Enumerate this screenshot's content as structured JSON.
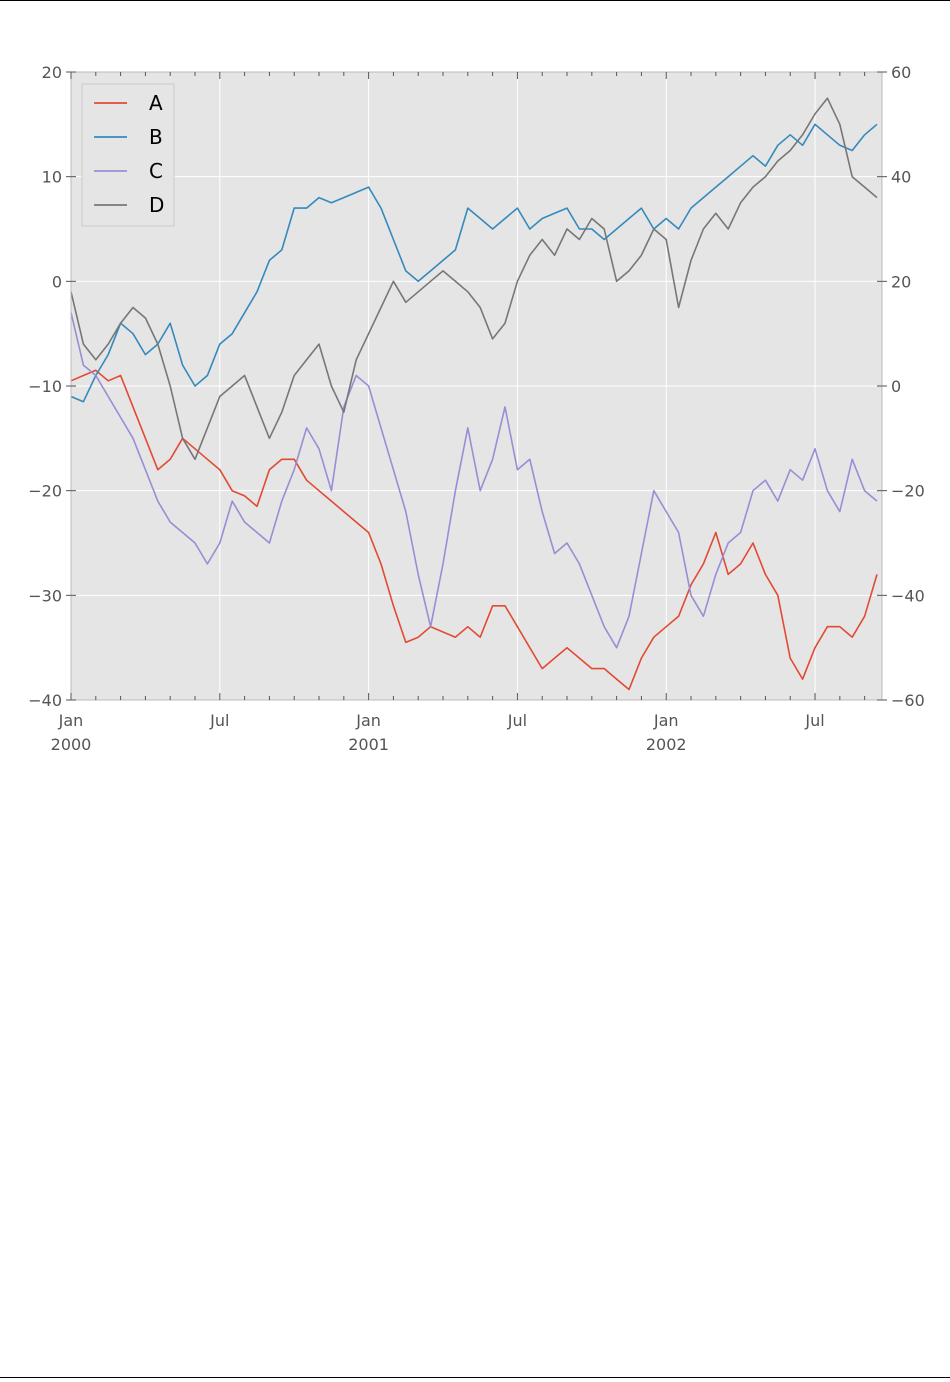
{
  "chart_data": {
    "type": "line",
    "title": "",
    "xlabel": "",
    "ylabel": "",
    "x_range": [
      "2000-01",
      "2002-09"
    ],
    "x_ticks": [
      {
        "month": 0,
        "label": "Jan",
        "sublabel": "2000"
      },
      {
        "month": 6,
        "label": "Jul",
        "sublabel": ""
      },
      {
        "month": 12,
        "label": "Jan",
        "sublabel": "2001"
      },
      {
        "month": 18,
        "label": "Jul",
        "sublabel": ""
      },
      {
        "month": 24,
        "label": "Jan",
        "sublabel": "2002"
      },
      {
        "month": 30,
        "label": "Jul",
        "sublabel": ""
      }
    ],
    "left_axis": {
      "ylim": [
        -40,
        20
      ],
      "ticks": [
        20,
        10,
        0,
        -10,
        -20,
        -30,
        -40
      ]
    },
    "right_axis": {
      "ylim": [
        -60,
        60
      ],
      "ticks": [
        60,
        40,
        20,
        0,
        -20,
        -40,
        -60
      ]
    },
    "legend": {
      "position": "top-left",
      "entries": [
        "A",
        "B",
        "C",
        "D"
      ]
    },
    "grid": true,
    "series": [
      {
        "name": "A",
        "axis": "left",
        "color": "#E24A33",
        "x": [
          0,
          0.5,
          1,
          1.5,
          2,
          2.5,
          3,
          3.5,
          4,
          4.5,
          5,
          5.5,
          6,
          6.5,
          7,
          7.5,
          8,
          8.5,
          9,
          9.5,
          10,
          10.5,
          11,
          11.5,
          12,
          12.5,
          13,
          13.5,
          14,
          14.5,
          15,
          15.5,
          16,
          16.5,
          17,
          17.5,
          18,
          18.5,
          19,
          19.5,
          20,
          20.5,
          21,
          21.5,
          22,
          22.5,
          23,
          23.5,
          24,
          24.5,
          25,
          25.5,
          26,
          26.5,
          27,
          27.5,
          28,
          28.5,
          29,
          29.5,
          30,
          30.5,
          31,
          31.5,
          32,
          32.5
        ],
        "values": [
          -9.5,
          -9,
          -8.5,
          -9.5,
          -9,
          -12,
          -15,
          -18,
          -17,
          -15,
          -16,
          -17,
          -18,
          -20,
          -20.5,
          -21.5,
          -18,
          -17,
          -17,
          -19,
          -20,
          -21,
          -22,
          -23,
          -24,
          -27,
          -31,
          -34.5,
          -34,
          -33,
          -33.5,
          -34,
          -33,
          -34,
          -31,
          -31,
          -33,
          -35,
          -37,
          -36,
          -35,
          -36,
          -37,
          -37,
          -38,
          -39,
          -36,
          -34,
          -33,
          -32,
          -29,
          -27,
          -24,
          -28,
          -27,
          -25,
          -28,
          -30,
          -36,
          -38,
          -35,
          -33,
          -33,
          -34,
          -32,
          -28
        ]
      },
      {
        "name": "B",
        "axis": "left",
        "color": "#348ABD",
        "x": [
          0,
          0.5,
          1,
          1.5,
          2,
          2.5,
          3,
          3.5,
          4,
          4.5,
          5,
          5.5,
          6,
          6.5,
          7,
          7.5,
          8,
          8.5,
          9,
          9.5,
          10,
          10.5,
          11,
          11.5,
          12,
          12.5,
          13,
          13.5,
          14,
          14.5,
          15,
          15.5,
          16,
          16.5,
          17,
          17.5,
          18,
          18.5,
          19,
          19.5,
          20,
          20.5,
          21,
          21.5,
          22,
          22.5,
          23,
          23.5,
          24,
          24.5,
          25,
          25.5,
          26,
          26.5,
          27,
          27.5,
          28,
          28.5,
          29,
          29.5,
          30,
          30.5,
          31,
          31.5,
          32,
          32.5
        ],
        "values": [
          -11,
          -11.5,
          -9,
          -7,
          -4,
          -5,
          -7,
          -6,
          -4,
          -8,
          -10,
          -9,
          -6,
          -5,
          -3,
          -1,
          2,
          3,
          7,
          7,
          8,
          7.5,
          8,
          8.5,
          9,
          7,
          4,
          1,
          0,
          1,
          2,
          3,
          7,
          6,
          5,
          6,
          7,
          5,
          6,
          6.5,
          7,
          5,
          5,
          4,
          5,
          6,
          7,
          5,
          6,
          5,
          7,
          8,
          9,
          10,
          11,
          12,
          11,
          13,
          14,
          13,
          15,
          14,
          13,
          12.5,
          14,
          15
        ]
      },
      {
        "name": "C",
        "axis": "left",
        "color": "#988ED5",
        "x": [
          0,
          0.5,
          1,
          1.5,
          2,
          2.5,
          3,
          3.5,
          4,
          4.5,
          5,
          5.5,
          6,
          6.5,
          7,
          7.5,
          8,
          8.5,
          9,
          9.5,
          10,
          10.5,
          11,
          11.5,
          12,
          12.5,
          13,
          13.5,
          14,
          14.5,
          15,
          15.5,
          16,
          16.5,
          17,
          17.5,
          18,
          18.5,
          19,
          19.5,
          20,
          20.5,
          21,
          21.5,
          22,
          22.5,
          23,
          23.5,
          24,
          24.5,
          25,
          25.5,
          26,
          26.5,
          27,
          27.5,
          28,
          28.5,
          29,
          29.5,
          30,
          30.5,
          31,
          31.5,
          32,
          32.5
        ],
        "values": [
          -3,
          -8,
          -9,
          -11,
          -13,
          -15,
          -18,
          -21,
          -23,
          -24,
          -25,
          -27,
          -25,
          -21,
          -23,
          -24,
          -25,
          -21,
          -18,
          -14,
          -16,
          -20,
          -12,
          -9,
          -10,
          -14,
          -18,
          -22,
          -28,
          -33,
          -27,
          -20,
          -14,
          -20,
          -17,
          -12,
          -18,
          -17,
          -22,
          -26,
          -25,
          -27,
          -30,
          -33,
          -35,
          -32,
          -26,
          -20,
          -22,
          -24,
          -30,
          -32,
          -28,
          -25,
          -24,
          -20,
          -19,
          -21,
          -18,
          -19,
          -16,
          -20,
          -22,
          -17,
          -20,
          -21
        ]
      },
      {
        "name": "D",
        "axis": "right",
        "color": "#777777",
        "x": [
          0,
          0.5,
          1,
          1.5,
          2,
          2.5,
          3,
          3.5,
          4,
          4.5,
          5,
          5.5,
          6,
          6.5,
          7,
          7.5,
          8,
          8.5,
          9,
          9.5,
          10,
          10.5,
          11,
          11.5,
          12,
          12.5,
          13,
          13.5,
          14,
          14.5,
          15,
          15.5,
          16,
          16.5,
          17,
          17.5,
          18,
          18.5,
          19,
          19.5,
          20,
          20.5,
          21,
          21.5,
          22,
          22.5,
          23,
          23.5,
          24,
          24.5,
          25,
          25.5,
          26,
          26.5,
          27,
          27.5,
          28,
          28.5,
          29,
          29.5,
          30,
          30.5,
          31,
          31.5,
          32,
          32.5
        ],
        "values": [
          18,
          8,
          5,
          8,
          12,
          15,
          13,
          8,
          0,
          -10,
          -14,
          -8,
          -2,
          0,
          2,
          -4,
          -10,
          -5,
          2,
          5,
          8,
          0,
          -5,
          5,
          10,
          15,
          20,
          16,
          18,
          20,
          22,
          20,
          18,
          15,
          9,
          12,
          20,
          25,
          28,
          25,
          30,
          28,
          32,
          30,
          20,
          22,
          25,
          30,
          28,
          15,
          24,
          30,
          33,
          30,
          35,
          38,
          40,
          43,
          45,
          48,
          52,
          55,
          50,
          40,
          38,
          36
        ]
      }
    ]
  }
}
